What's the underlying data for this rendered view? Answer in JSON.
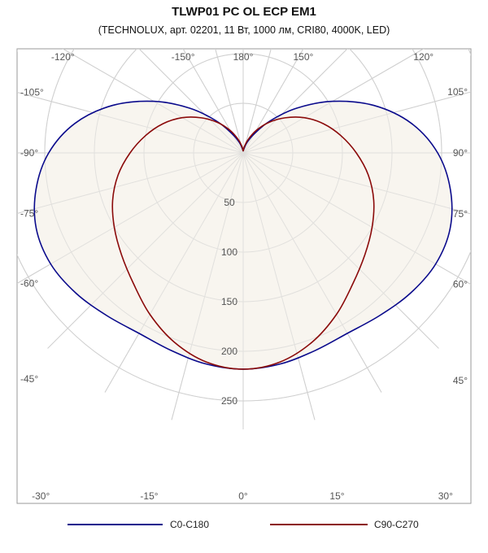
{
  "header": {
    "title": "TLWP01 PC OL ECP EM1",
    "subtitle": "(TECHNOLUX, арт. 02201, 11 Вт, 1000 лм, CRI80, 4000K, LED)"
  },
  "chart_data": {
    "type": "polar",
    "title": "TLWP01 PC OL ECP EM1",
    "subtitle": "(TECHNOLUX, арт. 02201, 11 Вт, 1000 лм, CRI80, 4000K, LED)",
    "radial_ticks": [
      50,
      100,
      150,
      200,
      250
    ],
    "radial_max": 300,
    "angle_tick_labels": [
      {
        "angle": 0,
        "label": "0°"
      },
      {
        "angle": 15,
        "label": "15°"
      },
      {
        "angle": 30,
        "label": "30°"
      },
      {
        "angle": 45,
        "label": "45°"
      },
      {
        "angle": 60,
        "label": "60°"
      },
      {
        "angle": 75,
        "label": "75°"
      },
      {
        "angle": 90,
        "label": "90°"
      },
      {
        "angle": 105,
        "label": "105°"
      },
      {
        "angle": 120,
        "label": "120°"
      },
      {
        "angle": 150,
        "label": "150°"
      },
      {
        "angle": 180,
        "label": "180°"
      },
      {
        "angle": -15,
        "label": "-15°"
      },
      {
        "angle": -30,
        "label": "-30°"
      },
      {
        "angle": -45,
        "label": "-45°"
      },
      {
        "angle": -60,
        "label": "-60°"
      },
      {
        "angle": -75,
        "label": "-75°"
      },
      {
        "angle": -90,
        "label": "-90°"
      },
      {
        "angle": -105,
        "label": "-105°"
      },
      {
        "angle": -120,
        "label": "-120°"
      },
      {
        "angle": -150,
        "label": "-150°"
      }
    ],
    "angles": [
      0,
      10,
      20,
      30,
      40,
      50,
      60,
      70,
      80,
      90,
      100,
      110,
      120,
      130,
      140,
      150,
      160,
      170,
      180
    ],
    "series": [
      {
        "name": "C0-C180",
        "color": "#0a0a8c",
        "values": [
          218,
          216,
          212,
          210,
          214,
          220,
          224,
          222,
          212,
          196,
          172,
          140,
          104,
          70,
          42,
          22,
          11,
          4,
          2
        ]
      },
      {
        "name": "C90-C270",
        "color": "#8b0a0a",
        "values": [
          218,
          214,
          203,
          188,
          172,
          160,
          150,
          140,
          128,
          114,
          100,
          86,
          71,
          55,
          40,
          26,
          14,
          6,
          2
        ]
      }
    ],
    "fill_color": "#f8f5ef",
    "legend_position": "bottom",
    "grid": true
  }
}
